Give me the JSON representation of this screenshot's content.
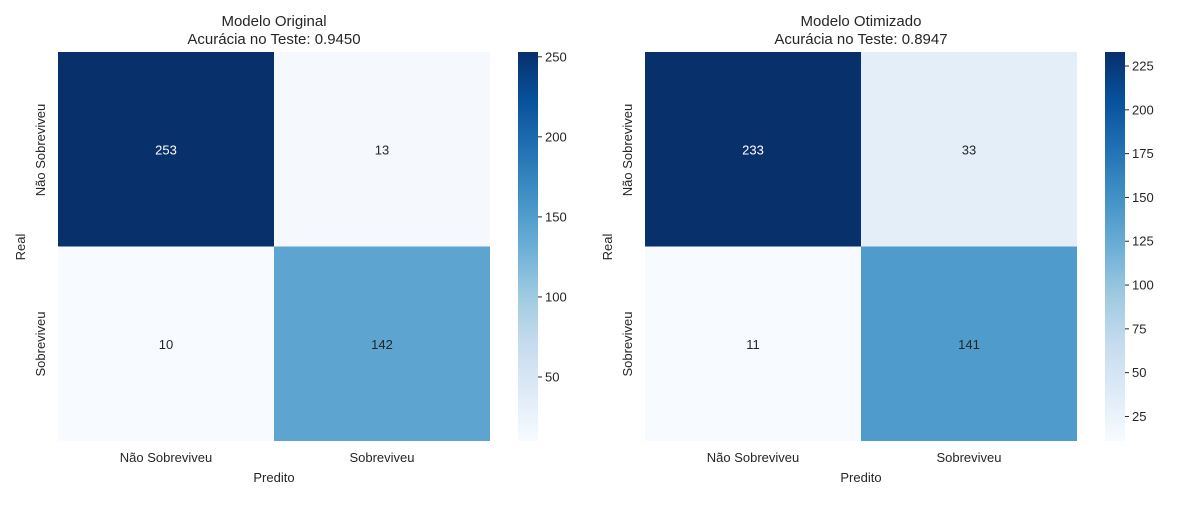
{
  "chart_data": [
    {
      "type": "heatmap",
      "title": "Modelo Original",
      "subtitle": "Acurácia no Teste: 0.9450",
      "xlabel": "Predito",
      "ylabel": "Real",
      "x_categories": [
        "Não Sobreviveu",
        "Sobreviveu"
      ],
      "y_categories": [
        "Não Sobreviveu",
        "Sobreviveu"
      ],
      "values": [
        [
          253,
          13
        ],
        [
          10,
          142
        ]
      ],
      "colormap": "Blues",
      "colorbar": {
        "min": 10,
        "max": 253,
        "ticks": [
          50,
          100,
          150,
          200,
          250
        ]
      },
      "grid": false
    },
    {
      "type": "heatmap",
      "title": "Modelo Otimizado",
      "subtitle": "Acurácia no Teste: 0.8947",
      "xlabel": "Predito",
      "ylabel": "Real",
      "x_categories": [
        "Não Sobreviveu",
        "Sobreviveu"
      ],
      "y_categories": [
        "Não Sobreviveu",
        "Sobreviveu"
      ],
      "values": [
        [
          233,
          33
        ],
        [
          11,
          141
        ]
      ],
      "colormap": "Blues",
      "colorbar": {
        "min": 11,
        "max": 233,
        "ticks": [
          25,
          50,
          75,
          100,
          125,
          150,
          175,
          200,
          225
        ]
      },
      "grid": false
    }
  ]
}
